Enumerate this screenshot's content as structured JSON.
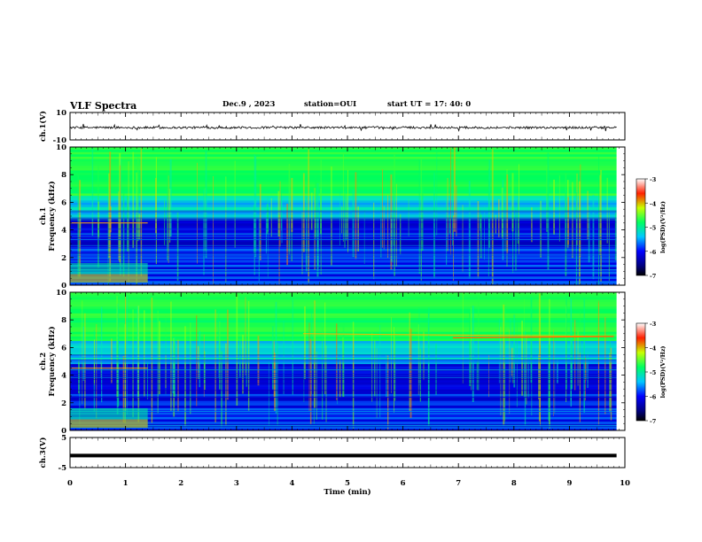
{
  "header": {
    "title": "VLF Spectra",
    "date": "Dec.9 , 2023",
    "station": "station=OUI",
    "start_ut": "start UT = 17: 40: 0"
  },
  "colors": {
    "spectrogram_background": "#0000aa",
    "trace": "#000000"
  },
  "chart_data": [
    {
      "type": "line",
      "title": "",
      "ylabel": "ch.1(V)",
      "ylim": [
        -10,
        10
      ],
      "y_tick_labels": [
        "10",
        "-10"
      ],
      "series": [
        {
          "description": "waveform trace, roughly constant around -1 V with small spikes",
          "approx_level": -1
        }
      ]
    },
    {
      "type": "heatmap",
      "ylabel": "ch.1\nFrequency (kHz)",
      "ylabel_lines": [
        "ch.1",
        "Frequency (kHz)"
      ],
      "ylim": [
        0,
        10
      ],
      "y_tick_labels": [
        "0",
        "2",
        "4",
        "6",
        "8",
        "10"
      ],
      "xlim": [
        0,
        10
      ],
      "colorbar": {
        "label": "log(PSD)(V²/Hz)",
        "range": [
          -7,
          -3
        ],
        "tick_labels": [
          "-3",
          "-4",
          "-5",
          "-6",
          "-7"
        ]
      }
    },
    {
      "type": "heatmap",
      "ylabel": "ch.2\nFrequency (kHz)",
      "ylabel_lines": [
        "ch.2",
        "Frequency (kHz)"
      ],
      "ylim": [
        0,
        10
      ],
      "y_tick_labels": [
        "0",
        "2",
        "4",
        "6",
        "8",
        "10"
      ],
      "xlim": [
        0,
        10
      ],
      "colorbar": {
        "label": "log(PSD)(V²/Hz)",
        "range": [
          -7,
          -3
        ],
        "tick_labels": [
          "-3",
          "-4",
          "-5",
          "-6",
          "-7"
        ]
      }
    },
    {
      "type": "line",
      "ylabel": "ch.3(V)",
      "ylim": [
        -5,
        5
      ],
      "y_tick_labels": [
        "5",
        "-5"
      ],
      "series": [
        {
          "description": "constant level",
          "approx_level": -1
        }
      ]
    }
  ],
  "x_axis": {
    "label": "Time (min)",
    "range": [
      0,
      10
    ],
    "tick_labels": [
      "0",
      "1",
      "2",
      "3",
      "4",
      "5",
      "6",
      "7",
      "8",
      "9",
      "10"
    ]
  }
}
